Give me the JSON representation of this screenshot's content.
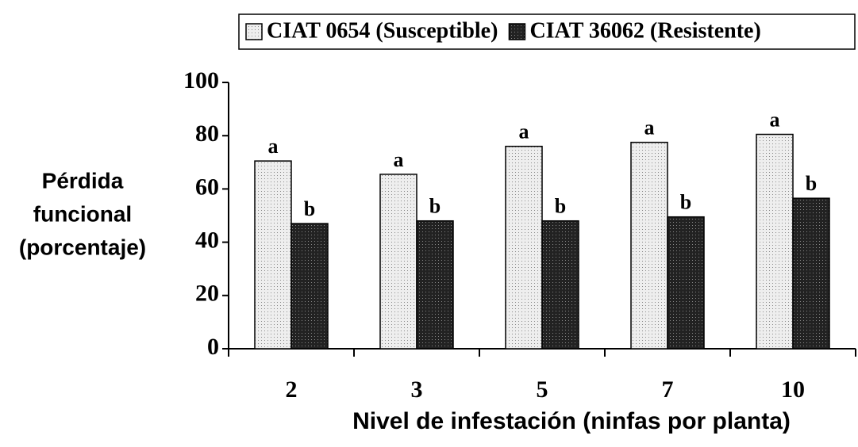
{
  "chart_data": {
    "type": "bar",
    "categories": [
      "2",
      "3",
      "5",
      "7",
      "10"
    ],
    "series": [
      {
        "name": "CIAT 0654 (Susceptible)",
        "color": "#eeeeee",
        "dot": "#888888",
        "values": [
          70.5,
          65.5,
          76,
          77.5,
          80.5
        ],
        "labels": [
          "a",
          "a",
          "a",
          "a",
          "a"
        ]
      },
      {
        "name": "CIAT 36062 (Resistente)",
        "color": "#222222",
        "dot": "#888888",
        "values": [
          47,
          48,
          48,
          49.5,
          56.5
        ],
        "labels": [
          "b",
          "b",
          "b",
          "b",
          "b"
        ]
      }
    ],
    "ylabel": [
      "Pérdida",
      "funcional",
      "(porcentaje)"
    ],
    "xlabel": "Nivel de infestación (ninfas por planta)",
    "ylim": [
      0,
      100
    ],
    "yticks": [
      0,
      20,
      40,
      60,
      80,
      100
    ],
    "legend": "top"
  }
}
